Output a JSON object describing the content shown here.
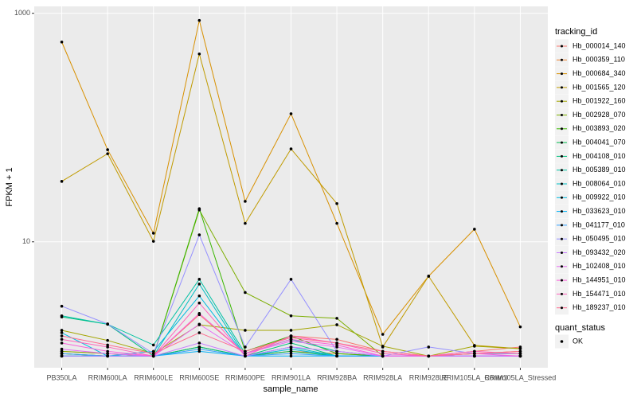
{
  "chart_data": {
    "type": "line",
    "log_y": true,
    "grid": true,
    "x_label": "sample_name",
    "y_label": "FPKM + 1",
    "categories": [
      "PB350LA",
      "RRIM600LA",
      "RRIM600LE",
      "RRIM600SE",
      "RRIM600PE",
      "RRIM901LA",
      "RRIM928BA",
      "RRIM928LA",
      "RRIM928LE",
      "RRIM105LA_Control",
      "RRIM105LA_Stressed"
    ],
    "ylim": [
      0.79,
      1150
    ],
    "yticks": [
      10,
      1000
    ],
    "legend_title": "tracking_id",
    "legend_position": "right",
    "shape_legend_title": "quant_status",
    "shape_legend_labels": [
      "OK"
    ],
    "point_color": "#000000",
    "series": [
      {
        "name": "Hb_000014_140",
        "color": "#F8766D",
        "values": [
          1.1,
          1.05,
          1.0,
          2.3,
          1.05,
          1.5,
          1.4,
          1.1,
          1.0,
          1.1,
          1.2
        ]
      },
      {
        "name": "Hb_000359_110",
        "color": "#EA8331",
        "values": [
          1.05,
          1.0,
          1.0,
          1.2,
          1.0,
          1.1,
          1.05,
          1.0,
          1.0,
          1.05,
          1.1
        ]
      },
      {
        "name": "Hb_000684_340",
        "color": "#D89000",
        "values": [
          561,
          64,
          11.9,
          866,
          22.6,
          132,
          14.5,
          1.55,
          5.0,
          12.9,
          1.8
        ]
      },
      {
        "name": "Hb_001565_120",
        "color": "#C09B00",
        "values": [
          33.8,
          59,
          10.1,
          441,
          14.5,
          65,
          21.6,
          1.2,
          5.0,
          1.24,
          1.16
        ]
      },
      {
        "name": "Hb_001922_160",
        "color": "#A3A500",
        "values": [
          1.68,
          1.37,
          1.05,
          1.88,
          1.68,
          1.68,
          1.88,
          1.22,
          1.0,
          1.22,
          1.16
        ]
      },
      {
        "name": "Hb_002928_070",
        "color": "#7CAE00",
        "values": [
          1.1,
          1.05,
          1.0,
          19,
          3.6,
          2.25,
          2.14,
          1.0,
          1.0,
          1.05,
          1.05
        ]
      },
      {
        "name": "Hb_003893_020",
        "color": "#39B600",
        "values": [
          1.05,
          1.0,
          1.0,
          19.5,
          1.1,
          1.5,
          1.05,
          1.0,
          1.0,
          1.0,
          1.0
        ]
      },
      {
        "name": "Hb_004041_070",
        "color": "#00BB4E",
        "values": [
          1.0,
          1.0,
          1.0,
          1.2,
          1.0,
          1.1,
          1.0,
          1.0,
          1.0,
          1.0,
          1.0
        ]
      },
      {
        "name": "Hb_004108_010",
        "color": "#00BF7D",
        "values": [
          2.2,
          1.9,
          1.0,
          1.2,
          1.0,
          1.3,
          1.0,
          1.0,
          1.0,
          1.0,
          1.0
        ]
      },
      {
        "name": "Hb_005389_010",
        "color": "#00C1A3",
        "values": [
          2.25,
          1.9,
          1.25,
          4.7,
          1.05,
          1.4,
          1.1,
          1.0,
          1.0,
          1.0,
          1.0
        ]
      },
      {
        "name": "Hb_008064_010",
        "color": "#00BFC4",
        "values": [
          1.0,
          1.0,
          1.0,
          4.27,
          1.0,
          1.2,
          1.0,
          1.0,
          1.0,
          1.0,
          1.0
        ]
      },
      {
        "name": "Hb_009922_010",
        "color": "#00BAE0",
        "values": [
          1.6,
          1.0,
          1.1,
          3.36,
          1.0,
          1.15,
          1.0,
          1.0,
          1.0,
          1.0,
          1.0
        ]
      },
      {
        "name": "Hb_033623_010",
        "color": "#00B0F6",
        "values": [
          1.0,
          1.0,
          1.0,
          1.1,
          1.0,
          1.0,
          1.0,
          1.0,
          1.0,
          1.0,
          1.0
        ]
      },
      {
        "name": "Hb_041177_010",
        "color": "#35A2FF",
        "values": [
          1.05,
          1.0,
          1.0,
          1.15,
          1.0,
          1.05,
          1.0,
          1.0,
          1.0,
          1.0,
          1.0
        ]
      },
      {
        "name": "Hb_050495_010",
        "color": "#9590FF",
        "values": [
          2.73,
          1.91,
          1.05,
          11.5,
          1.2,
          4.7,
          1.1,
          1.0,
          1.2,
          1.05,
          1.05
        ]
      },
      {
        "name": "Hb_093432_020",
        "color": "#C77CFF",
        "values": [
          1.0,
          1.0,
          1.0,
          1.3,
          1.0,
          1.2,
          1.1,
          1.0,
          1.0,
          1.0,
          1.0
        ]
      },
      {
        "name": "Hb_102408_010",
        "color": "#E76BF3",
        "values": [
          1.15,
          1.05,
          1.0,
          1.9,
          1.05,
          1.35,
          1.2,
          1.0,
          1.0,
          1.0,
          1.0
        ]
      },
      {
        "name": "Hb_144951_010",
        "color": "#FA62DB",
        "values": [
          1.3,
          1.1,
          1.0,
          2.36,
          1.05,
          1.4,
          1.25,
          1.0,
          1.0,
          1.05,
          1.0
        ]
      },
      {
        "name": "Hb_154471_010",
        "color": "#FF62BC",
        "values": [
          1.4,
          1.2,
          1.0,
          2.91,
          1.0,
          1.5,
          1.3,
          1.05,
          1.0,
          1.1,
          1.05
        ]
      },
      {
        "name": "Hb_189237_010",
        "color": "#FF6C91",
        "values": [
          1.5,
          1.25,
          1.05,
          1.6,
          1.1,
          1.45,
          1.3,
          1.1,
          1.0,
          1.05,
          1.1
        ]
      }
    ]
  }
}
